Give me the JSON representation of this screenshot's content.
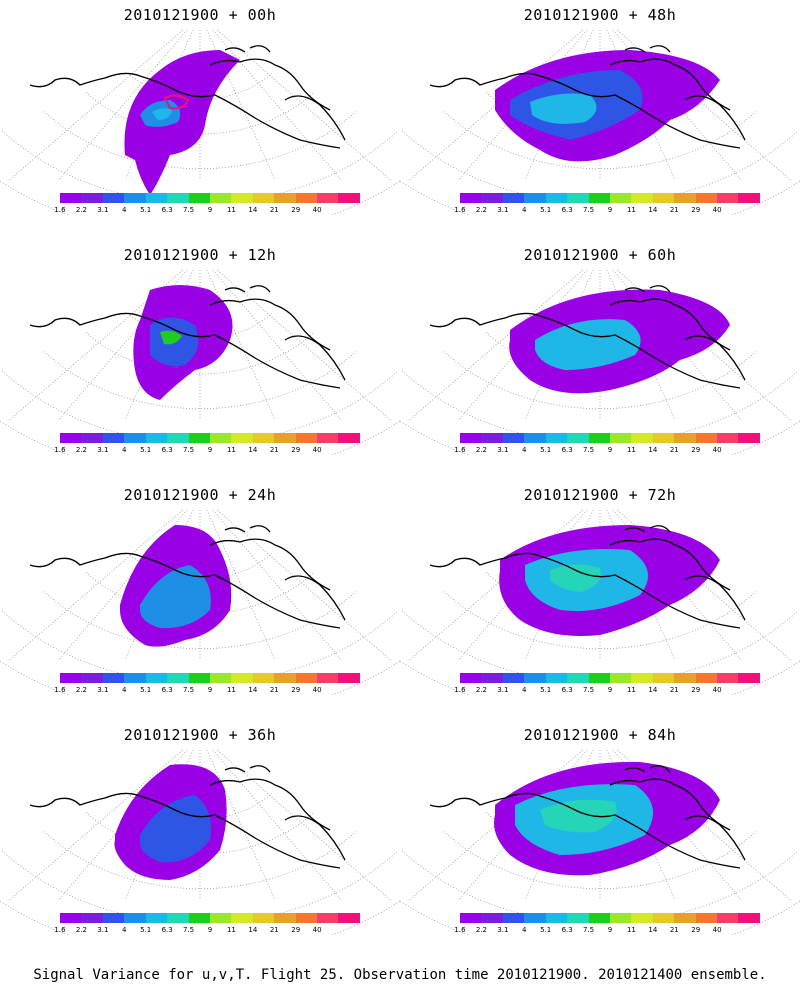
{
  "caption": "Signal Variance for u,v,T. Flight 25. Observation time 2010121900. 2010121400 ensemble.",
  "colorbar": {
    "labels": [
      "1.6",
      "2.2",
      "3.1",
      "4",
      "5.1",
      "6.3",
      "7.5",
      "9",
      "11",
      "14",
      "21",
      "29",
      "40"
    ],
    "colors": [
      "#9a00e6",
      "#7a1fd6",
      "#2e55e6",
      "#1f8fe6",
      "#1fb8e6",
      "#26d4b8",
      "#21cc21",
      "#9ae62e",
      "#d4e62e",
      "#e6c82e",
      "#e6a02e",
      "#f07830",
      "#f0406a",
      "#f0107a"
    ]
  },
  "panels": [
    {
      "title": "2010121900 + 00h"
    },
    {
      "title": "2010121900 + 48h"
    },
    {
      "title": "2010121900 + 12h"
    },
    {
      "title": "2010121900 + 60h"
    },
    {
      "title": "2010121900 + 24h"
    },
    {
      "title": "2010121900 + 72h"
    },
    {
      "title": "2010121900 + 36h"
    },
    {
      "title": "2010121900 + 84h"
    }
  ]
}
